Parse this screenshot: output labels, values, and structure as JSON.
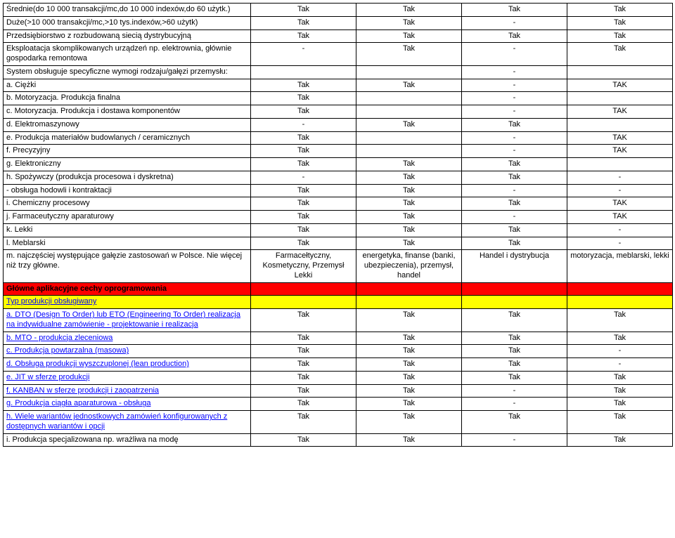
{
  "yes": "Tak",
  "dash": "-",
  "yesU": "TAK",
  "rows": [
    {
      "label": "Średnie(do 10 000 transakcji/mc,do 10 000 indexów,do 60 użytk.)",
      "c": [
        "Tak",
        "Tak",
        "Tak",
        "Tak"
      ]
    },
    {
      "label": "Duże(>10 000 transakcji/mc,>10 tys.indexów,>60 użytk)",
      "c": [
        "Tak",
        "Tak",
        "-",
        "Tak"
      ]
    },
    {
      "label": "Przedsiębiorstwo z rozbudowaną siecią dystrybucyjną",
      "c": [
        "Tak",
        "Tak",
        "Tak",
        "Tak"
      ]
    },
    {
      "label": "Eksploatacja skomplikowanych urządzeń np. elektrownia, głównie gospodarka remontowa",
      "c": [
        "-",
        "Tak",
        "-",
        "Tak"
      ]
    },
    {
      "label": "System obsługuje specyficzne wymogi rodzaju/gałęzi przemysłu:",
      "c": [
        "",
        "",
        "-",
        ""
      ]
    },
    {
      "label": "a. Ciężki",
      "c": [
        "Tak",
        "Tak",
        "-",
        "TAK"
      ]
    },
    {
      "label": "b. Motoryzacja. Produkcja finalna",
      "c": [
        "Tak",
        "",
        "-",
        ""
      ]
    },
    {
      "label": "c. Motoryzacja. Produkcja i dostawa komponentów",
      "c": [
        "Tak",
        "",
        "-",
        "TAK"
      ]
    },
    {
      "label": "d. Elektromaszynowy",
      "c": [
        "-",
        "Tak",
        "Tak",
        ""
      ]
    },
    {
      "label": "e. Produkcja materiałów budowlanych / ceramicznych",
      "c": [
        "Tak",
        "",
        "-",
        "TAK"
      ]
    },
    {
      "label": "f. Precyzyjny",
      "c": [
        "Tak",
        "",
        "-",
        "TAK"
      ]
    },
    {
      "label": "g. Elektroniczny",
      "c": [
        "Tak",
        "Tak",
        "Tak",
        ""
      ]
    },
    {
      "label": "h. Spożywczy (produkcja procesowa i dyskretna)",
      "c": [
        "-",
        "Tak",
        "Tak",
        "-"
      ]
    },
    {
      "label": "  - obsługa hodowli i kontraktacji",
      "c": [
        "Tak",
        "Tak",
        "-",
        "-"
      ]
    },
    {
      "label": "i. Chemiczny procesowy",
      "c": [
        "Tak",
        "Tak",
        "Tak",
        "TAK"
      ]
    },
    {
      "label": "j. Farmaceutyczny aparaturowy",
      "c": [
        "Tak",
        "Tak",
        "-",
        "TAK"
      ]
    },
    {
      "label": "k. Lekki",
      "c": [
        "Tak",
        "Tak",
        "Tak",
        "-"
      ]
    },
    {
      "label": "l. Meblarski",
      "c": [
        "Tak",
        "Tak",
        "Tak",
        "-"
      ]
    },
    {
      "label": "m. najczęściej występujące gałęzie zastosowań w Polsce. Nie więcej niż trzy główne.",
      "c": [
        "Farmacełtyczny, Kosmetyczny, Przemysł Lekki",
        "energetyka, finanse (banki, ubezpieczenia), przemysł, handel",
        "Handel i dystrybucja",
        "motoryzacja, meblarski, lekki"
      ]
    }
  ],
  "section1": "Główne aplikacyjne cechy oprogramowania",
  "section2": "Typ produkcji obsługiwany",
  "rows2": [
    {
      "label": "a. DTO (Design To Order) lub ETO (Engineering To Order) realizacja na indywidualne zamówienie - projektowanie i realizacja",
      "blue": true,
      "c": [
        "Tak",
        "Tak",
        "Tak",
        "Tak"
      ]
    },
    {
      "label": "b. MTO - produkcja zleceniowa",
      "blue": true,
      "c": [
        "Tak",
        "Tak",
        "Tak",
        "Tak"
      ]
    },
    {
      "label": "c. Produkcja powtarzalna (masowa)",
      "blue": true,
      "c": [
        "Tak",
        "Tak",
        "Tak",
        "-"
      ]
    },
    {
      "label": "d. Obsługa produkcji wyszczuplonej (lean production)",
      "blue": true,
      "c": [
        "Tak",
        "Tak",
        "Tak",
        "-"
      ]
    },
    {
      "label": "e. JIT w sferze produkcji",
      "blue": true,
      "c": [
        "Tak",
        "Tak",
        "Tak",
        "Tak"
      ]
    },
    {
      "label": "f. KANBAN  w sferze produkcji i zaopatrzenia",
      "blue": true,
      "c": [
        "Tak",
        "Tak",
        "-",
        "Tak"
      ]
    },
    {
      "label": "g. Produkcja ciągła aparaturowa - obsługa",
      "blue": true,
      "c": [
        "Tak",
        "Tak",
        "-",
        "Tak"
      ]
    },
    {
      "label": "h. Wiele wariantów jednostkowych zamówień konfigurowanych z dostępnych wariantów i opcji",
      "blue": true,
      "c": [
        "Tak",
        "Tak",
        "Tak",
        "Tak"
      ]
    },
    {
      "label": "i. Produkcja specjalizowana np. wrażliwa na modę",
      "blue": false,
      "c": [
        "Tak",
        "Tak",
        "-",
        "Tak"
      ]
    }
  ]
}
